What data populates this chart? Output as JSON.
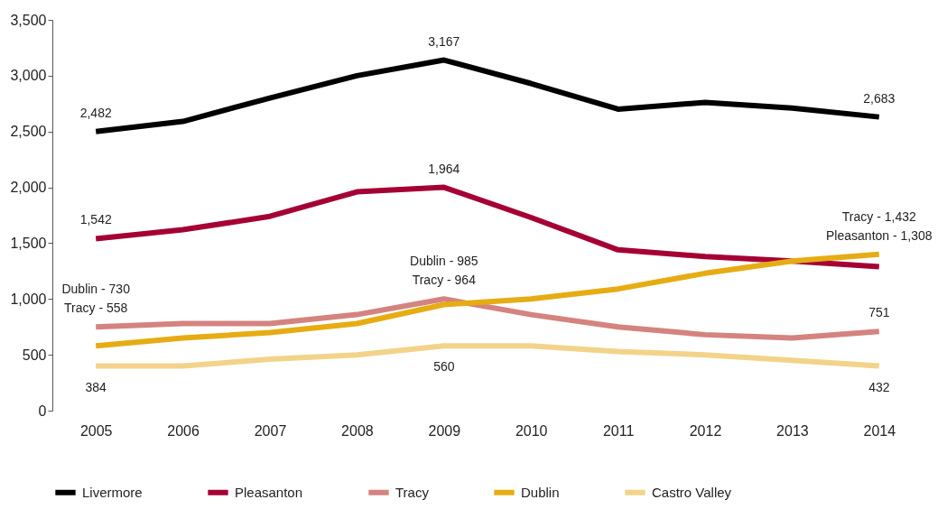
{
  "chart_data": {
    "type": "line",
    "categories": [
      "2005",
      "2006",
      "2007",
      "2008",
      "2009",
      "2010",
      "2011",
      "2012",
      "2013",
      "2014"
    ],
    "series": [
      {
        "name": "Livermore",
        "color": "#000000",
        "values": [
          2500,
          2590,
          2800,
          3000,
          3140,
          2930,
          2700,
          2760,
          2710,
          2630
        ]
      },
      {
        "name": "Pleasanton",
        "color": "#a50034",
        "values": [
          1540,
          1620,
          1740,
          1960,
          2000,
          1730,
          1440,
          1380,
          1340,
          1290
        ]
      },
      {
        "name": "Tracy",
        "color": "#d4837f",
        "values": [
          750,
          780,
          780,
          860,
          1000,
          860,
          750,
          680,
          650,
          710
        ]
      },
      {
        "name": "Dublin",
        "color": "#e6ac13",
        "values": [
          580,
          650,
          700,
          780,
          950,
          1000,
          1090,
          1230,
          1340,
          1400
        ]
      },
      {
        "name": "Castro Valley",
        "color": "#f3d38a",
        "values": [
          400,
          400,
          460,
          500,
          580,
          580,
          530,
          500,
          450,
          400
        ]
      }
    ],
    "ylim": [
      0,
      3500
    ],
    "yticks": [
      {
        "value": 0,
        "label": "0"
      },
      {
        "value": 500,
        "label": "500"
      },
      {
        "value": 1000,
        "label": "1,000"
      },
      {
        "value": 1500,
        "label": "1,500"
      },
      {
        "value": 2000,
        "label": "2,000"
      },
      {
        "value": 2500,
        "label": "2,500"
      },
      {
        "value": 3000,
        "label": "3,000"
      },
      {
        "value": 3500,
        "label": "3,500"
      }
    ],
    "grid": false,
    "legend": "bottom",
    "marker": "none",
    "line_style": "solid",
    "annotations": [
      {
        "text": "2,482",
        "x": "2005",
        "y": 2500
      },
      {
        "text": "3,167",
        "x": "2009",
        "y": 3140
      },
      {
        "text": "2,683",
        "x": "2014",
        "y": 2630
      },
      {
        "text": "1,964",
        "x": "2009",
        "y": 2000
      },
      {
        "text": "1,542",
        "x": "2005",
        "y": 1540
      },
      {
        "text": "Tracy - 1,432",
        "x": "2014",
        "y": 1400
      },
      {
        "text": "Pleasanton - 1,308",
        "x": "2014",
        "y": 1400
      },
      {
        "text": "Dublin - 985",
        "x": "2009",
        "y": 1000
      },
      {
        "text": "Tracy - 964",
        "x": "2009",
        "y": 1000
      },
      {
        "text": "Dublin - 730",
        "x": "2005",
        "y": 750
      },
      {
        "text": "Tracy - 558",
        "x": "2005",
        "y": 750
      },
      {
        "text": "751",
        "x": "2014",
        "y": 710
      },
      {
        "text": "384",
        "x": "2005",
        "y": 400
      },
      {
        "text": "560",
        "x": "2009",
        "y": 580
      },
      {
        "text": "432",
        "x": "2014",
        "y": 400
      }
    ]
  }
}
